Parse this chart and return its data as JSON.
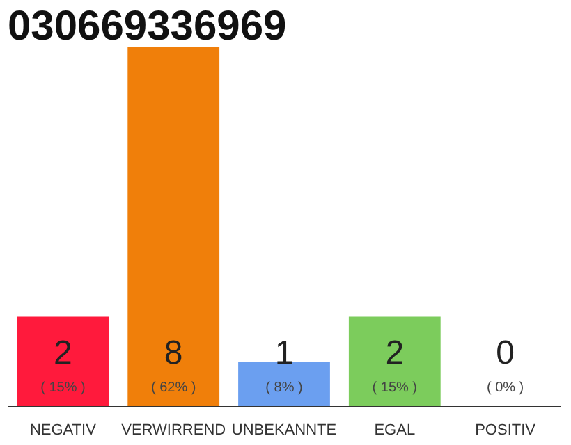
{
  "chart_data": {
    "type": "bar",
    "title": "030669336969",
    "categories": [
      "NEGATIV",
      "VERWIRREND",
      "UNBEKANNTE",
      "EGAL",
      "POSITIV"
    ],
    "values": [
      2,
      8,
      1,
      2,
      0
    ],
    "colors": [
      "#ff1a3c",
      "#f07f0a",
      "#6b9ff0",
      "#7ccc5c",
      "#cccccc"
    ],
    "ylim": [
      0,
      8
    ],
    "data_labels": true,
    "grid": false,
    "tick_labels": "x",
    "annotations": [
      "( 15% )",
      "( 62% )",
      "( 8% )",
      "( 15% )",
      "( 0% )"
    ]
  }
}
